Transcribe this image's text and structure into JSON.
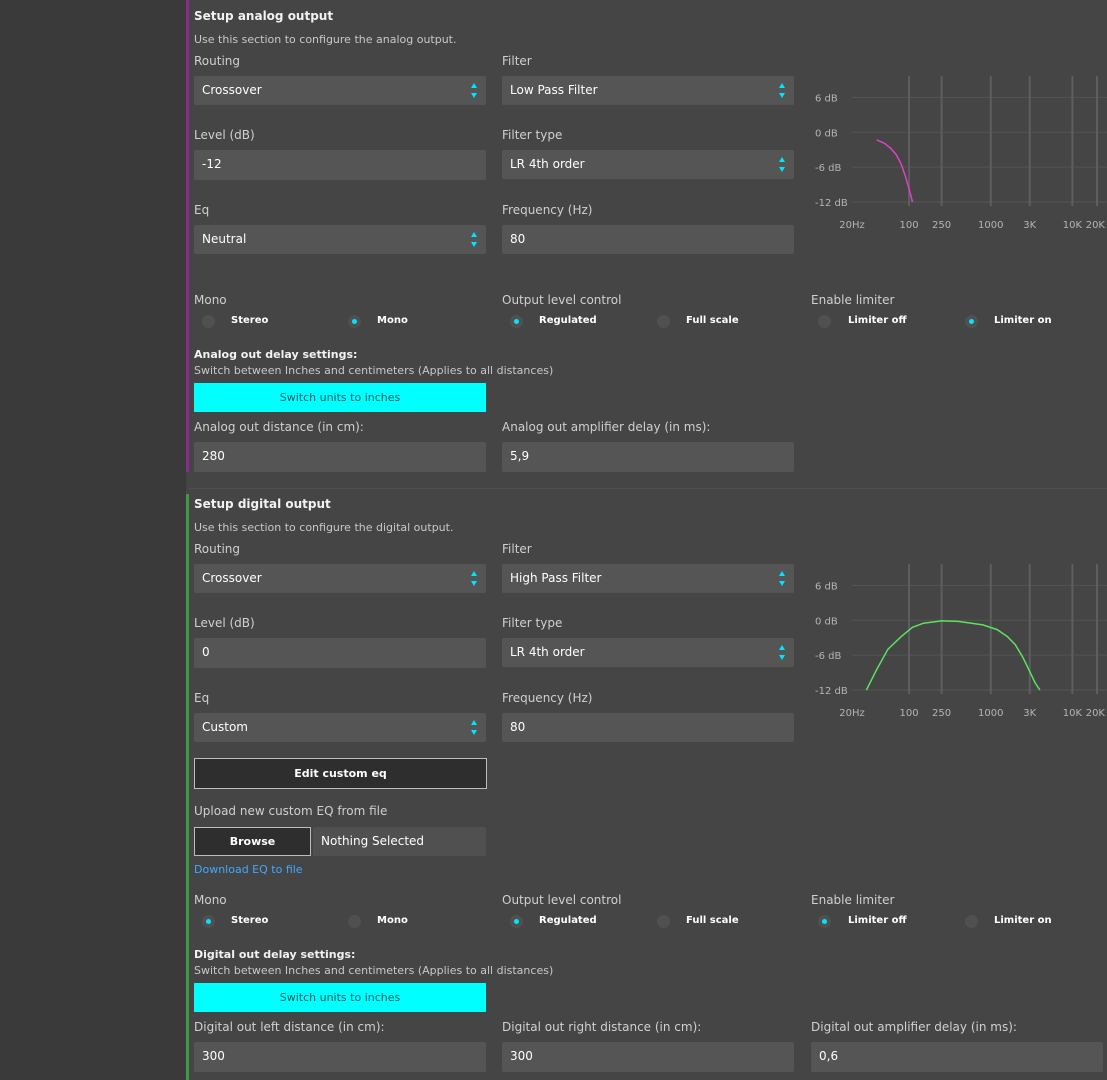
{
  "analog": {
    "title": "Setup analog output",
    "description": "Use this section to configure the analog output.",
    "routing_label": "Routing",
    "routing_value": "Crossover",
    "filter_label": "Filter",
    "filter_value": "Low Pass Filter",
    "level_label": "Level (dB)",
    "level_value": "-12",
    "filter_type_label": "Filter type",
    "filter_type_value": "LR 4th order",
    "eq_label": "Eq",
    "eq_value": "Neutral",
    "frequency_label": "Frequency (Hz)",
    "frequency_value": "80",
    "mono_label": "Mono",
    "mono_options": [
      "Stereo",
      "Mono"
    ],
    "mono_selected": "Mono",
    "output_level_label": "Output level control",
    "output_level_options": [
      "Regulated",
      "Full scale"
    ],
    "output_level_selected": "Regulated",
    "limiter_label": "Enable limiter",
    "limiter_options": [
      "Limiter off",
      "Limiter on"
    ],
    "limiter_selected": "Limiter on",
    "delay_title": "Analog out delay settings:",
    "delay_desc": "Switch between Inches and centimeters (Applies to all distances)",
    "switch_units_label": "Switch units to inches",
    "distance_label": "Analog out distance (in cm):",
    "distance_value": "280",
    "amp_delay_label": "Analog out amplifier delay (in ms):",
    "amp_delay_value": "5,9",
    "accent_color": "#8b2a8f",
    "curve_color": "#e040c8"
  },
  "digital": {
    "title": "Setup digital output",
    "description": "Use this section to configure the digital output.",
    "routing_label": "Routing",
    "routing_value": "Crossover",
    "filter_label": "Filter",
    "filter_value": "High Pass Filter",
    "level_label": "Level (dB)",
    "level_value": "0",
    "filter_type_label": "Filter type",
    "filter_type_value": "LR 4th order",
    "eq_label": "Eq",
    "eq_value": "Custom",
    "frequency_label": "Frequency (Hz)",
    "frequency_value": "80",
    "edit_eq_label": "Edit custom eq",
    "upload_label": "Upload new custom EQ from file",
    "browse_label": "Browse",
    "file_value": "Nothing Selected",
    "download_label": "Download EQ to file",
    "mono_label": "Mono",
    "mono_options": [
      "Stereo",
      "Mono"
    ],
    "mono_selected": "Stereo",
    "output_level_label": "Output level control",
    "output_level_options": [
      "Regulated",
      "Full scale"
    ],
    "output_level_selected": "Regulated",
    "limiter_label": "Enable limiter",
    "limiter_options": [
      "Limiter off",
      "Limiter on"
    ],
    "limiter_selected": "Limiter off",
    "delay_title": "Digital out delay settings:",
    "delay_desc": "Switch between Inches and centimeters (Applies to all distances)",
    "switch_units_label": "Switch units to inches",
    "left_distance_label": "Digital out left distance (in cm):",
    "left_distance_value": "300",
    "right_distance_label": "Digital out right distance (in cm):",
    "right_distance_value": "300",
    "amp_delay_label": "Digital out amplifier delay (in ms):",
    "amp_delay_value": "0,6",
    "accent_color": "#3f9a3f",
    "curve_color": "#5ee05e"
  },
  "chart_data": [
    {
      "type": "line",
      "x_scale": "log",
      "xlim": [
        20,
        20000
      ],
      "ylim": [
        -12,
        9
      ],
      "y_ticks": [
        "6 dB",
        "0 dB",
        "-6 dB",
        "-12 dB"
      ],
      "y_tick_values": [
        6,
        0,
        -6,
        -12
      ],
      "x_ticks": [
        "20Hz",
        "100",
        "250",
        "1000",
        "3K",
        "10K",
        "20K"
      ],
      "x_tick_values": [
        20,
        100,
        250,
        1000,
        3000,
        10000,
        20000
      ],
      "series": [
        {
          "x": [
            40,
            50,
            60,
            70,
            80,
            90,
            100,
            110
          ],
          "y": [
            -1.3,
            -1.9,
            -2.8,
            -3.9,
            -5.5,
            -7.5,
            -9.8,
            -12
          ]
        }
      ]
    },
    {
      "type": "line",
      "x_scale": "log",
      "xlim": [
        20,
        20000
      ],
      "ylim": [
        -12,
        9
      ],
      "y_ticks": [
        "6 dB",
        "0 dB",
        "-6 dB",
        "-12 dB"
      ],
      "y_tick_values": [
        6,
        0,
        -6,
        -12
      ],
      "x_ticks": [
        "20Hz",
        "100",
        "250",
        "1000",
        "3K",
        "10K",
        "20K"
      ],
      "x_tick_values": [
        20,
        100,
        250,
        1000,
        3000,
        10000,
        20000
      ],
      "series": [
        {
          "x": [
            30,
            40,
            55,
            80,
            110,
            150,
            250,
            400,
            800,
            1200,
            1600,
            2000,
            2500,
            3000,
            3500,
            4000
          ],
          "y": [
            -12,
            -8.5,
            -5,
            -2.8,
            -1.2,
            -0.5,
            -0.1,
            -0.2,
            -0.8,
            -1.6,
            -2.8,
            -4.2,
            -6.5,
            -8.8,
            -10.8,
            -12
          ]
        }
      ]
    }
  ]
}
